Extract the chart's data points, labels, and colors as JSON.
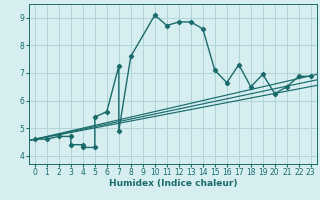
{
  "xlabel": "Humidex (Indice chaleur)",
  "ylabel": "",
  "bg_color": "#d6eef0",
  "grid_color": "#b0d4d8",
  "line_color": "#1a6b6b",
  "xlim": [
    -0.5,
    23.5
  ],
  "ylim": [
    3.7,
    9.5
  ],
  "xticks": [
    0,
    1,
    2,
    3,
    4,
    5,
    6,
    7,
    8,
    9,
    10,
    11,
    12,
    13,
    14,
    15,
    16,
    17,
    18,
    19,
    20,
    21,
    22,
    23
  ],
  "yticks": [
    4,
    5,
    6,
    7,
    8,
    9
  ],
  "curve_x": [
    0,
    1,
    2,
    3,
    3,
    4,
    4,
    5,
    5,
    6,
    7,
    7,
    8,
    10,
    11,
    12,
    13,
    14,
    15,
    16,
    17,
    18,
    19,
    20,
    21,
    22,
    23
  ],
  "curve_y": [
    4.6,
    4.6,
    4.7,
    4.7,
    4.4,
    4.4,
    4.3,
    4.3,
    5.4,
    5.6,
    7.25,
    4.9,
    7.6,
    9.1,
    8.72,
    8.85,
    8.85,
    8.6,
    7.1,
    6.65,
    7.3,
    6.5,
    6.95,
    6.25,
    6.5,
    6.88,
    6.88
  ],
  "line1_x": [
    -0.5,
    23.5
  ],
  "line1_y": [
    4.55,
    6.55
  ],
  "line2_x": [
    -0.5,
    23.5
  ],
  "line2_y": [
    4.55,
    6.75
  ],
  "line3_x": [
    -0.5,
    23.5
  ],
  "line3_y": [
    4.55,
    6.95
  ]
}
